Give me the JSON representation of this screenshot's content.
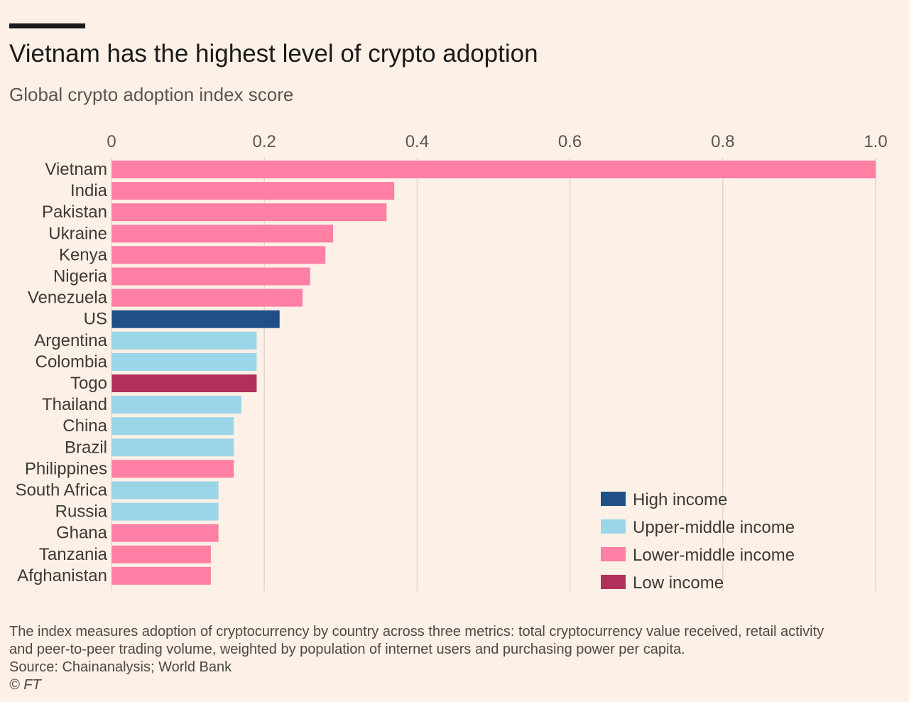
{
  "header": {
    "title": "Vietnam has the highest level of crypto adoption",
    "subtitle": "Global crypto adoption index score"
  },
  "footer": {
    "note_line1": "The index measures adoption of cryptocurrency by country across three metrics: total cryptocurrency value received, retail activity",
    "note_line2": "and peer-to-peer trading volume, weighted by population of internet users and purchasing power per capita.",
    "source": "Source: Chainanalysis; World Bank",
    "credit": "© FT"
  },
  "chart_data": {
    "type": "bar",
    "orientation": "horizontal",
    "xlim": [
      0,
      1.0
    ],
    "xticks": [
      0,
      0.2,
      0.4,
      0.6,
      0.8,
      1.0
    ],
    "xtick_labels": [
      "0",
      "0.2",
      "0.4",
      "0.6",
      "0.8",
      "1.0"
    ],
    "xaxis_position": "top",
    "grid": "vertical",
    "legend_position": "bottom-right",
    "groups": [
      {
        "name": "High income",
        "color": "#1f5085"
      },
      {
        "name": "Upper-middle income",
        "color": "#9ad5e8"
      },
      {
        "name": "Lower-middle income",
        "color": "#ff7fa5"
      },
      {
        "name": "Low income",
        "color": "#b0305b"
      }
    ],
    "categories": [
      "Vietnam",
      "India",
      "Pakistan",
      "Ukraine",
      "Kenya",
      "Nigeria",
      "Venezuela",
      "US",
      "Argentina",
      "Colombia",
      "Togo",
      "Thailand",
      "China",
      "Brazil",
      "Philippines",
      "South Africa",
      "Russia",
      "Ghana",
      "Tanzania",
      "Afghanistan"
    ],
    "values": [
      1.0,
      0.37,
      0.36,
      0.29,
      0.28,
      0.26,
      0.25,
      0.22,
      0.19,
      0.19,
      0.19,
      0.17,
      0.16,
      0.16,
      0.16,
      0.14,
      0.14,
      0.14,
      0.13,
      0.13
    ],
    "income_group": [
      "Lower-middle income",
      "Lower-middle income",
      "Lower-middle income",
      "Lower-middle income",
      "Lower-middle income",
      "Lower-middle income",
      "Lower-middle income",
      "High income",
      "Upper-middle income",
      "Upper-middle income",
      "Low income",
      "Upper-middle income",
      "Upper-middle income",
      "Upper-middle income",
      "Lower-middle income",
      "Upper-middle income",
      "Upper-middle income",
      "Lower-middle income",
      "Lower-middle income",
      "Lower-middle income"
    ]
  }
}
